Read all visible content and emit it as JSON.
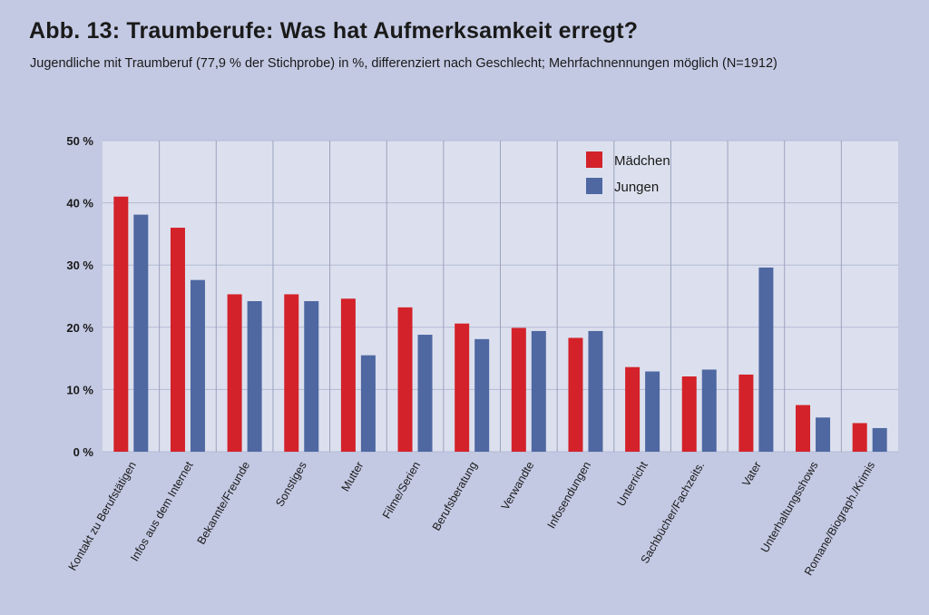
{
  "title": "Abb. 13:  Traumberufe: Was hat Aufmerksamkeit erregt?",
  "subtitle": "Jugendliche mit Traumberuf (77,9 % der Stichprobe) in %, differenziert nach Geschlecht; Mehrfachnennungen möglich (N=1912)",
  "chart_data": {
    "type": "bar",
    "categories": [
      "Kontakt zu Berufstätigen",
      "Infos aus dem Internet",
      "Bekannte/Freunde",
      "Sonstiges",
      "Mutter",
      "Filme/Serien",
      "Berufsberatung",
      "Verwandte",
      "Infosendungen",
      "Unterricht",
      "Sachbücher/Fachzeits.",
      "Vater",
      "Unterhaltungsshows",
      "Romane/Biograph./Krimis"
    ],
    "series": [
      {
        "name": "Mädchen",
        "color": "#d3222a",
        "values": [
          41,
          36,
          25.3,
          25.3,
          24.6,
          23.2,
          20.6,
          19.9,
          18.3,
          13.6,
          12.1,
          12.4,
          7.5,
          4.6
        ]
      },
      {
        "name": "Jungen",
        "color": "#4f68a2",
        "values": [
          38.1,
          27.6,
          24.2,
          24.2,
          15.5,
          18.8,
          18.1,
          19.4,
          19.4,
          12.9,
          13.2,
          29.6,
          5.5,
          3.8
        ]
      }
    ],
    "ylim": [
      0,
      50
    ],
    "yticks": [
      0,
      10,
      20,
      30,
      40,
      50
    ],
    "ytick_labels": [
      "0 %",
      "10 %",
      "20 %",
      "30 %",
      "40 %",
      "50 %"
    ],
    "grid": true,
    "legend": "top-right"
  }
}
